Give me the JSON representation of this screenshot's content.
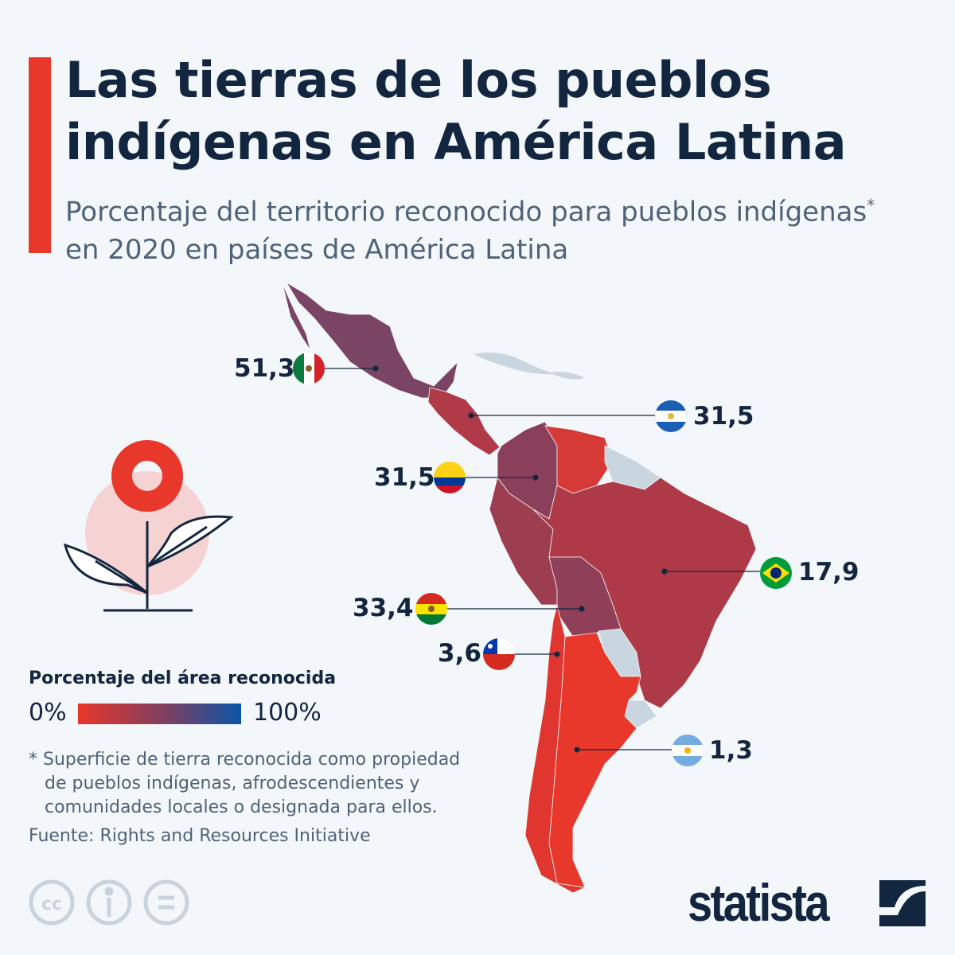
{
  "header": {
    "title_line1": "Las tierras de los pueblos",
    "title_line2": "indígenas en América Latina",
    "subtitle_line1": "Porcentaje del territorio reconocido para pueblos indígenas",
    "subtitle_asterisk": "*",
    "subtitle_line2": "en 2020 en países de América Latina"
  },
  "map_data": {
    "countries": [
      {
        "country": "México",
        "value": "51,3",
        "flag": "mexico-flag"
      },
      {
        "country": "Nicaragua",
        "value": "31,5",
        "flag": "nicaragua-flag"
      },
      {
        "country": "Colombia",
        "value": "31,5",
        "flag": "colombia-flag"
      },
      {
        "country": "Brasil",
        "value": "17,9",
        "flag": "brazil-flag"
      },
      {
        "country": "Bolivia",
        "value": "33,4",
        "flag": "bolivia-flag"
      },
      {
        "country": "Chile",
        "value": "3,6",
        "flag": "chile-flag"
      },
      {
        "country": "Argentina",
        "value": "1,3",
        "flag": "argentina-flag"
      }
    ],
    "color_scale": {
      "min_color": "#e8372b",
      "mid_color": "#7a4063",
      "max_color": "#0b55a8",
      "no_data_color": "#c9d6df"
    }
  },
  "legend": {
    "title": "Porcentaje del área reconocida",
    "min_label": "0%",
    "max_label": "100%"
  },
  "footnote": {
    "line1": "* Superficie de tierra reconocida como propiedad",
    "line2": "de pueblos indígenas, afrodescendientes y",
    "line3": "comunidades locales o designada para ellos."
  },
  "source": "Fuente: Rights and Resources Initiative",
  "brand": "statista",
  "license_icons": [
    "cc-icon",
    "attribution-icon",
    "no-derivatives-icon"
  ]
}
